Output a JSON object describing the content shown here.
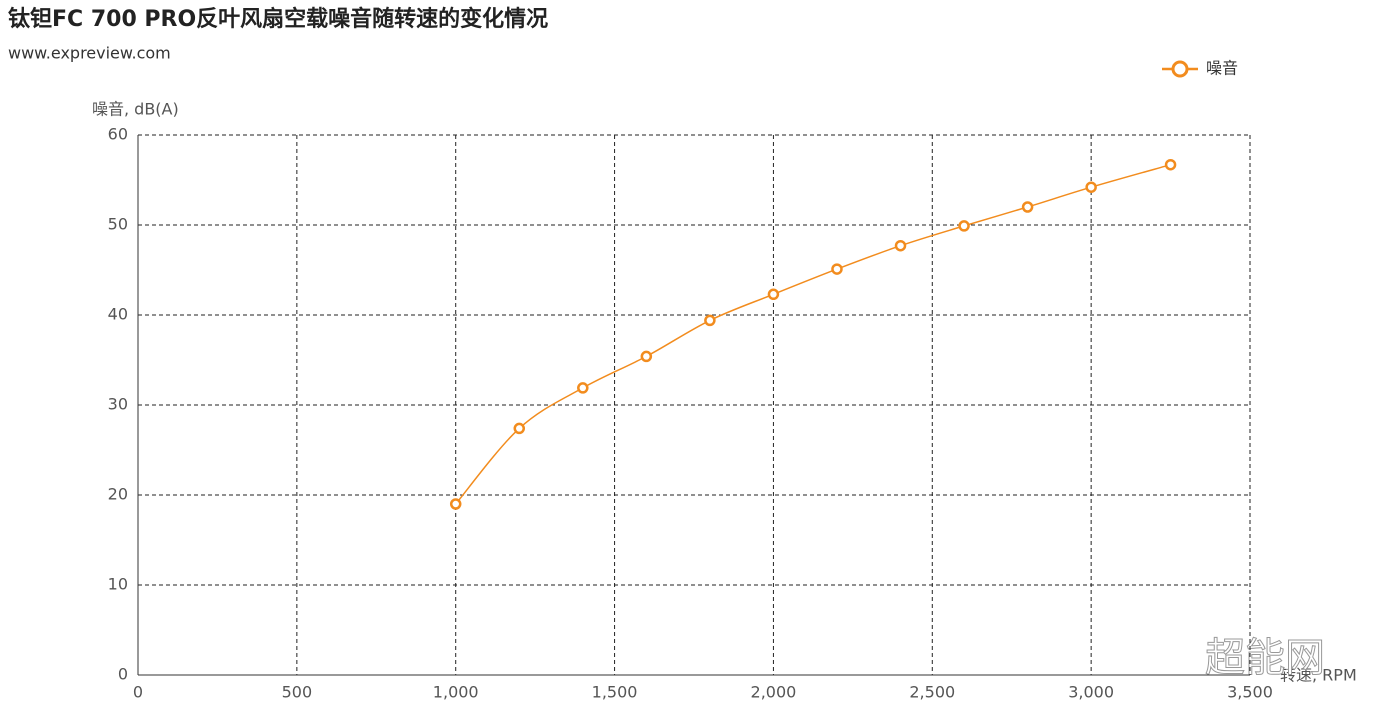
{
  "chart_data": {
    "type": "line",
    "title": "钛钽FC 700 PRO反叶风扇空载噪音随转速的变化情况",
    "subtitle": "www.expreview.com",
    "y_label": "噪音, dB(A)",
    "x_label": "转速, RPM",
    "watermark": "超能网",
    "x": [
      1000,
      1200,
      1400,
      1600,
      1800,
      2000,
      2200,
      2400,
      2600,
      2800,
      3000,
      3250
    ],
    "series": [
      {
        "name": "噪音",
        "color": "#f28c1e",
        "values": [
          19,
          27.4,
          31.9,
          35.4,
          39.4,
          42.3,
          45.1,
          47.7,
          49.9,
          52,
          54.2,
          56.7
        ]
      }
    ],
    "xlim": [
      0,
      3500
    ],
    "xticks": [
      0,
      500,
      {
        "value": 1000,
        "label": "1,000"
      },
      {
        "value": 1500,
        "label": "1,500"
      },
      {
        "value": 2000,
        "label": "2,000"
      },
      {
        "value": 2500,
        "label": "2,500"
      },
      {
        "value": 3000,
        "label": "3,000"
      },
      {
        "value": 3500,
        "label": "3,500"
      }
    ],
    "ylim": [
      0,
      60
    ],
    "yticks": [
      0,
      10,
      20,
      30,
      40,
      50,
      60
    ],
    "grid": true,
    "legend": "top-right"
  }
}
